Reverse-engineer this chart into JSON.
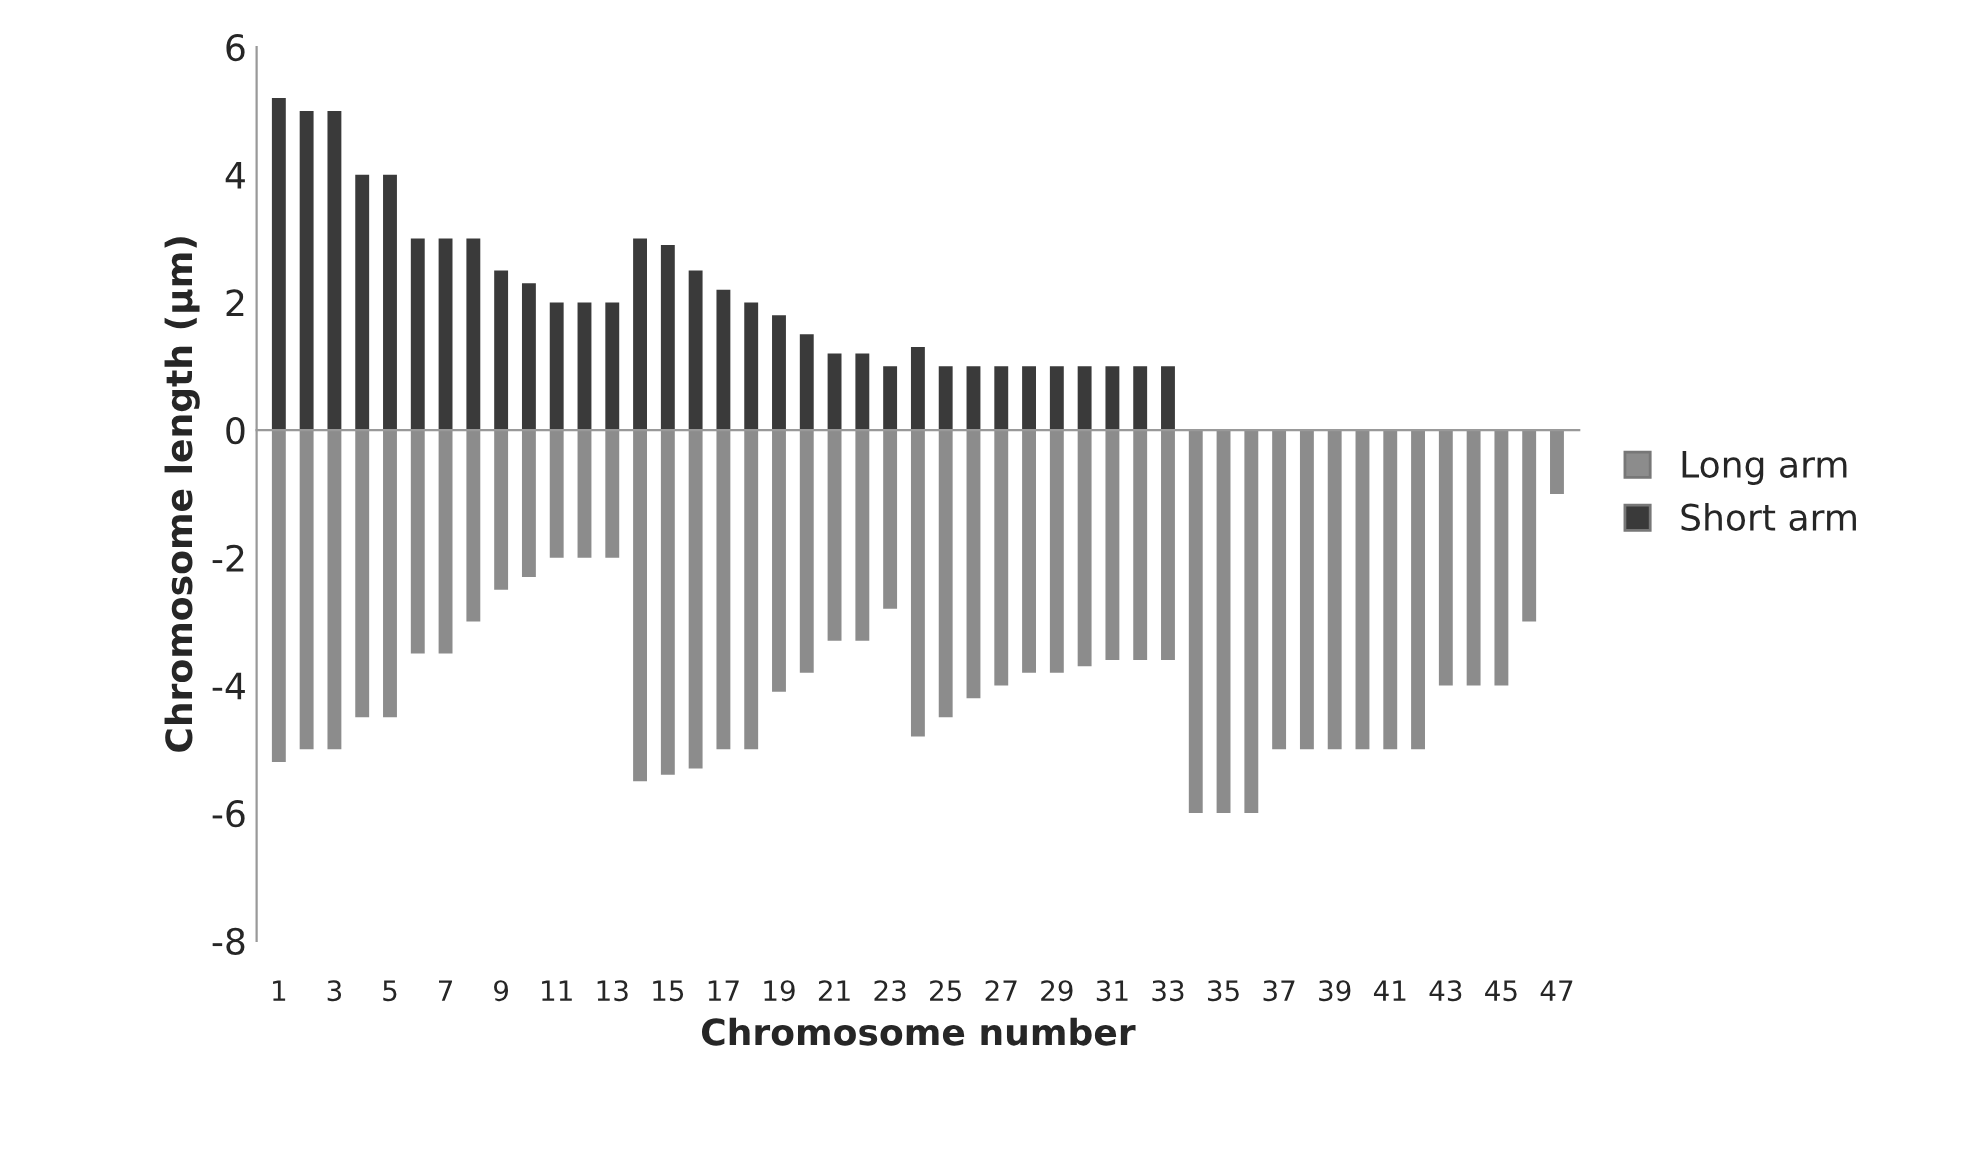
{
  "chart_data": {
    "type": "bar",
    "xlabel": "Chromosome number",
    "ylabel": "Chromosome length (µm)",
    "categories": [
      "1",
      null,
      "3",
      null,
      "5",
      null,
      "7",
      null,
      "9",
      null,
      "11",
      null,
      "13",
      null,
      "15",
      null,
      "17",
      null,
      "19",
      null,
      "21",
      null,
      "23",
      null,
      "25",
      null,
      "27",
      null,
      "29",
      null,
      "31",
      null,
      "33",
      null,
      "35",
      null,
      "37",
      null,
      "39",
      null,
      "41",
      null,
      "43",
      null,
      "45",
      null,
      "47"
    ],
    "series": [
      {
        "name": "Long arm",
        "color": "#8c8c8c",
        "values": [
          -5.2,
          -5.0,
          -5.0,
          -4.5,
          -4.5,
          -3.5,
          -3.5,
          -3.0,
          -2.5,
          -2.3,
          -2.0,
          -2.0,
          -2.0,
          -5.5,
          -5.4,
          -5.3,
          -5.0,
          -5.0,
          -4.1,
          -3.8,
          -3.3,
          -3.3,
          -2.8,
          -4.8,
          -4.5,
          -4.2,
          -4.0,
          -3.8,
          -3.8,
          -3.7,
          -3.6,
          -3.6,
          -3.6,
          -6.0,
          -6.0,
          -6.0,
          -5.0,
          -5.0,
          -5.0,
          -5.0,
          -5.0,
          -5.0,
          -4.0,
          -4.0,
          -4.0,
          -3.0,
          -1.0
        ]
      },
      {
        "name": "Short arm",
        "color": "#3a3a3a",
        "values": [
          5.2,
          5.0,
          5.0,
          4.0,
          4.0,
          3.0,
          3.0,
          3.0,
          2.5,
          2.3,
          2.0,
          2.0,
          2.0,
          3.0,
          2.9,
          2.5,
          2.2,
          2.0,
          1.8,
          1.5,
          1.2,
          1.2,
          1.0,
          1.3,
          1.0,
          1.0,
          1.0,
          1.0,
          1.0,
          1.0,
          1.0,
          1.0,
          1.0,
          null,
          null,
          null,
          null,
          null,
          null,
          null,
          null,
          null,
          null,
          null,
          null,
          null,
          null
        ]
      }
    ],
    "ylim": [
      -8,
      6
    ],
    "yticks": [
      -8,
      -6,
      -4,
      -2,
      0,
      2,
      4,
      6
    ],
    "stacked": true,
    "legend": "right"
  }
}
